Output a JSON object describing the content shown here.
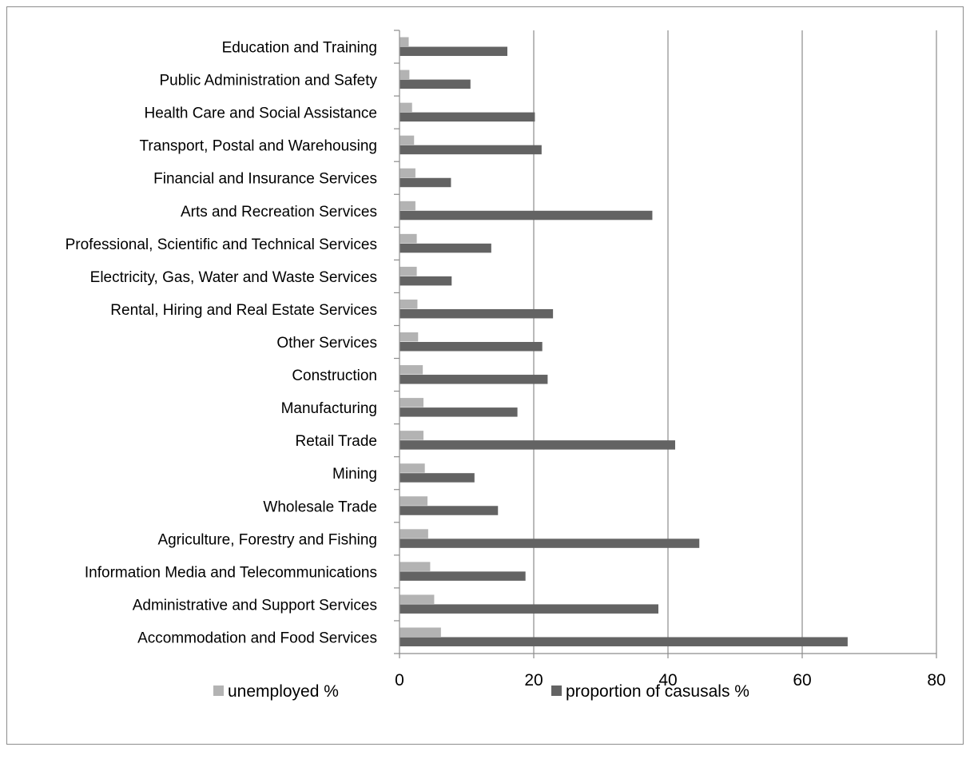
{
  "chart_data": {
    "type": "bar",
    "orientation": "horizontal",
    "categories": [
      "Accommodation and Food Services",
      "Administrative and Support Services",
      "Information Media and Telecommunications",
      "Agriculture, Forestry and Fishing",
      "Wholesale Trade",
      "Mining",
      "Retail Trade",
      "Manufacturing",
      "Construction",
      "Other Services",
      "Rental, Hiring and Real Estate Services",
      "Electricity, Gas, Water and Waste Services",
      "Professional, Scientific and Technical Services",
      "Arts and Recreation Services",
      "Financial and Insurance Services",
      "Transport, Postal and Warehousing",
      "Health Care and Social Assistance",
      "Public Administration and Safety",
      "Education and Training"
    ],
    "series": [
      {
        "name": "unemployed %",
        "color": "#b3b3b3",
        "values": [
          6.1,
          5.1,
          4.5,
          4.2,
          4.1,
          3.7,
          3.5,
          3.5,
          3.4,
          2.7,
          2.6,
          2.5,
          2.5,
          2.3,
          2.3,
          2.1,
          1.8,
          1.4,
          1.3
        ]
      },
      {
        "name": "proportion of casusals %",
        "color": "#636363",
        "values": [
          66.7,
          38.5,
          18.7,
          44.6,
          14.6,
          11.1,
          41.0,
          17.5,
          22.0,
          21.2,
          22.8,
          7.7,
          13.6,
          37.6,
          7.6,
          21.1,
          20.1,
          10.5,
          16.0
        ]
      }
    ],
    "xlim": [
      0,
      80
    ],
    "xticks": [
      "0",
      "20",
      "40",
      "60",
      "80"
    ],
    "grid": "vertical major gridlines",
    "legend_position": "bottom"
  }
}
